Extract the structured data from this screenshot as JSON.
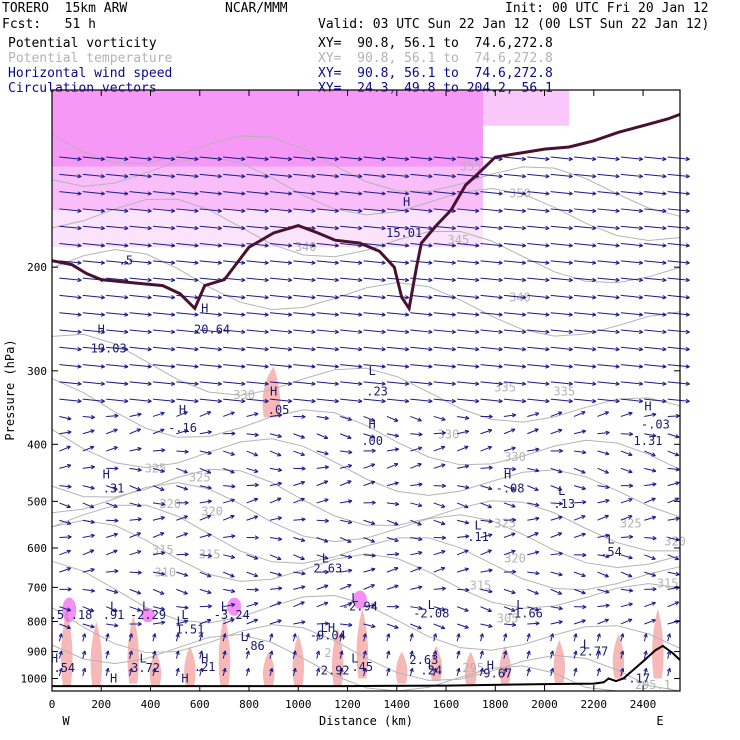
{
  "header": {
    "model": "TORERO  15km ARW",
    "org": "NCAR/MMM",
    "init": "Init: 00 UTC Fri 20 Jan 12",
    "fcst": "Fcst:   51 h",
    "valid": "Valid: 03 UTC Sun 22 Jan 12 (00 LST Sun 22 Jan 12)",
    "fields": [
      {
        "name": "Potential vorticity",
        "xy": "XY=  90.8, 56.1 to  74.6,272.8",
        "color": "#000000"
      },
      {
        "name": "Potential temperature",
        "xy": "XY=  90.8, 56.1 to  74.6,272.8",
        "color": "#b4b4b4"
      },
      {
        "name": "Horizontal wind speed",
        "xy": "XY=  90.8, 56.1 to  74.6,272.8",
        "color": "#0a0a8c"
      },
      {
        "name": "Circulation vectors",
        "xy": "XY=  24.3, 49.8 to 204.2, 56.1",
        "color": "#0a0a8c"
      }
    ]
  },
  "chart_data": {
    "type": "cross-section",
    "xlabel": "Distance (km)",
    "ylabel": "Pressure (hPa)",
    "xlim": [
      0,
      2550
    ],
    "ylim": [
      1050,
      100
    ],
    "y_scale": "log",
    "x_ticks": [
      0,
      200,
      400,
      600,
      800,
      1000,
      1200,
      1400,
      1600,
      1800,
      2000,
      2200,
      2400
    ],
    "y_ticks": [
      200,
      300,
      400,
      500,
      600,
      700,
      800,
      900,
      1000
    ],
    "x_end_labels": {
      "left": "W",
      "right": "E"
    },
    "colors": {
      "theta": "#b4b4b4",
      "wind": "#1a1a8c",
      "pv_fill": "#ee44ee",
      "speed_fill": "#f7b8b8",
      "tropopause": "#4a1030"
    },
    "theta_contours": [
      {
        "label": "355",
        "x": 1700,
        "p": 135
      },
      {
        "label": "350",
        "x": 1900,
        "p": 150
      },
      {
        "label": "345",
        "x": 1650,
        "p": 180
      },
      {
        "label": "340",
        "x": 1030,
        "p": 185
      },
      {
        "label": "340",
        "x": 1900,
        "p": 225
      },
      {
        "label": "335",
        "x": 1840,
        "p": 320
      },
      {
        "label": "335",
        "x": 2080,
        "p": 325
      },
      {
        "label": "330",
        "x": 780,
        "p": 330
      },
      {
        "label": "330",
        "x": 1610,
        "p": 385
      },
      {
        "label": "330",
        "x": 1880,
        "p": 420
      },
      {
        "label": "325",
        "x": 420,
        "p": 440
      },
      {
        "label": "325",
        "x": 600,
        "p": 455
      },
      {
        "label": "325",
        "x": 1840,
        "p": 545
      },
      {
        "label": "325",
        "x": 2350,
        "p": 545
      },
      {
        "label": "320",
        "x": 480,
        "p": 505
      },
      {
        "label": "320",
        "x": 650,
        "p": 520
      },
      {
        "label": "320",
        "x": 1880,
        "p": 625
      },
      {
        "label": "320",
        "x": 2530,
        "p": 585
      },
      {
        "label": "315",
        "x": 450,
        "p": 605
      },
      {
        "label": "315",
        "x": 640,
        "p": 615
      },
      {
        "label": "315",
        "x": 1740,
        "p": 695
      },
      {
        "label": "315",
        "x": 2500,
        "p": 690
      },
      {
        "label": "310",
        "x": 460,
        "p": 660
      },
      {
        "label": "305",
        "x": 1850,
        "p": 790
      },
      {
        "label": "2",
        "x": 1120,
        "p": 905
      },
      {
        "label": "295",
        "x": 1710,
        "p": 960
      },
      {
        "label": "295.1",
        "x": 2440,
        "p": 1025
      }
    ],
    "pv_labels": [
      {
        "label": "H",
        "x": 1440,
        "p": 155
      },
      {
        "label": "15.01",
        "x": 1430,
        "p": 175
      },
      {
        "label": ".5",
        "x": 300,
        "p": 195
      },
      {
        "label": "H",
        "x": 200,
        "p": 255
      },
      {
        "label": "19.03",
        "x": 230,
        "p": 275
      },
      {
        "label": "H",
        "x": 620,
        "p": 235
      },
      {
        "label": "20.64",
        "x": 650,
        "p": 255
      },
      {
        "label": "L",
        "x": 1300,
        "p": 300
      },
      {
        "label": ".23",
        "x": 1320,
        "p": 325
      },
      {
        "label": "H",
        "x": 900,
        "p": 325
      },
      {
        "label": ".05",
        "x": 920,
        "p": 350
      },
      {
        "label": "H",
        "x": 530,
        "p": 350
      },
      {
        "label": "-.16",
        "x": 530,
        "p": 375
      },
      {
        "label": "H",
        "x": 1300,
        "p": 370
      },
      {
        "label": ".00",
        "x": 1300,
        "p": 395
      },
      {
        "label": "H",
        "x": 2420,
        "p": 345
      },
      {
        "label": "-.03",
        "x": 2450,
        "p": 370
      },
      {
        "label": "1.31",
        "x": 2420,
        "p": 395
      },
      {
        "label": "H",
        "x": 220,
        "p": 450
      },
      {
        "label": ".31",
        "x": 250,
        "p": 475
      },
      {
        "label": "H",
        "x": 1850,
        "p": 450
      },
      {
        "label": "-.08",
        "x": 1860,
        "p": 475
      },
      {
        "label": "L",
        "x": 2070,
        "p": 480
      },
      {
        "label": ".13",
        "x": 2080,
        "p": 505
      },
      {
        "label": "L",
        "x": 1730,
        "p": 550
      },
      {
        "label": ".11",
        "x": 1730,
        "p": 575
      },
      {
        "label": "L",
        "x": 2270,
        "p": 580
      },
      {
        "label": ".54",
        "x": 2270,
        "p": 610
      },
      {
        "label": "L",
        "x": 1110,
        "p": 625
      },
      {
        "label": "2.63",
        "x": 1120,
        "p": 650
      },
      {
        "label": "L",
        "x": 1230,
        "p": 730
      },
      {
        "label": "-2.94",
        "x": 1250,
        "p": 755
      },
      {
        "label": ".5",
        "x": 20,
        "p": 780
      },
      {
        "label": ".18",
        "x": 120,
        "p": 780
      },
      {
        "label": "L",
        "x": 250,
        "p": 755
      },
      {
        "label": ".91",
        "x": 250,
        "p": 780
      },
      {
        "label": "L",
        "x": 380,
        "p": 755
      },
      {
        "label": "-2.29",
        "x": 390,
        "p": 780
      },
      {
        "label": "L",
        "x": 540,
        "p": 780
      },
      {
        "label": "L",
        "x": 700,
        "p": 755
      },
      {
        "label": "-3.24",
        "x": 730,
        "p": 780
      },
      {
        "label": "L",
        "x": 1540,
        "p": 750
      },
      {
        "label": "-2.08",
        "x": 1540,
        "p": 775
      },
      {
        "label": "L",
        "x": 1900,
        "p": 750
      },
      {
        "label": "-1.66",
        "x": 1920,
        "p": 775
      },
      {
        "label": "L",
        "x": 520,
        "p": 800
      },
      {
        "label": "1.51",
        "x": 560,
        "p": 825
      },
      {
        "label": "LH",
        "x": 1120,
        "p": 820
      },
      {
        "label": "-9.04",
        "x": 1120,
        "p": 845
      },
      {
        "label": "L",
        "x": 780,
        "p": 850
      },
      {
        "label": ".86",
        "x": 820,
        "p": 880
      },
      {
        "label": "L",
        "x": 2170,
        "p": 875
      },
      {
        "label": "2.77",
        "x": 2200,
        "p": 900
      },
      {
        "label": "H",
        "x": 10,
        "p": 925
      },
      {
        "label": ".54",
        "x": 50,
        "p": 960
      },
      {
        "label": "L",
        "x": 370,
        "p": 925
      },
      {
        "label": "3.72",
        "x": 380,
        "p": 960
      },
      {
        "label": "H",
        "x": 620,
        "p": 925
      },
      {
        "label": ".21",
        "x": 620,
        "p": 955
      },
      {
        "label": "L",
        "x": 1230,
        "p": 925
      },
      {
        "label": ".45",
        "x": 1260,
        "p": 955
      },
      {
        "label": "2.63",
        "x": 1510,
        "p": 930
      },
      {
        "label": "2.92",
        "x": 1150,
        "p": 970
      },
      {
        "label": "L",
        "x": 1540,
        "p": 950
      },
      {
        "label": ".24",
        "x": 1540,
        "p": 970
      },
      {
        "label": "H",
        "x": 1780,
        "p": 950
      },
      {
        "label": "9.67",
        "x": 1810,
        "p": 980
      },
      {
        "label": "-.17",
        "x": 2370,
        "p": 1000
      },
      {
        "label": "H",
        "x": 250,
        "p": 1000
      },
      {
        "label": "H",
        "x": 540,
        "p": 1000
      }
    ],
    "tropopause": [
      [
        0,
        195
      ],
      [
        80,
        198
      ],
      [
        140,
        205
      ],
      [
        200,
        210
      ],
      [
        300,
        212
      ],
      [
        450,
        215
      ],
      [
        520,
        222
      ],
      [
        580,
        235
      ],
      [
        620,
        215
      ],
      [
        700,
        210
      ],
      [
        800,
        185
      ],
      [
        900,
        175
      ],
      [
        1000,
        170
      ],
      [
        1080,
        175
      ],
      [
        1150,
        180
      ],
      [
        1250,
        182
      ],
      [
        1330,
        188
      ],
      [
        1390,
        200
      ],
      [
        1420,
        225
      ],
      [
        1450,
        235
      ],
      [
        1480,
        200
      ],
      [
        1500,
        182
      ],
      [
        1560,
        170
      ],
      [
        1620,
        160
      ],
      [
        1680,
        145
      ],
      [
        1720,
        140
      ],
      [
        1800,
        130
      ],
      [
        1900,
        128
      ],
      [
        2000,
        126
      ],
      [
        2100,
        125
      ],
      [
        2200,
        122
      ],
      [
        2300,
        118
      ],
      [
        2400,
        115
      ],
      [
        2500,
        112
      ],
      [
        2550,
        110
      ]
    ],
    "terrain": [
      [
        0,
        1030
      ],
      [
        400,
        1030
      ],
      [
        800,
        1030
      ],
      [
        1200,
        1030
      ],
      [
        1600,
        1028
      ],
      [
        2000,
        1022
      ],
      [
        2200,
        1020
      ],
      [
        2240,
        1015
      ],
      [
        2260,
        1000
      ],
      [
        2290,
        1010
      ],
      [
        2320,
        1000
      ],
      [
        2350,
        975
      ],
      [
        2400,
        935
      ],
      [
        2450,
        895
      ],
      [
        2480,
        880
      ],
      [
        2520,
        905
      ],
      [
        2550,
        930
      ]
    ]
  }
}
